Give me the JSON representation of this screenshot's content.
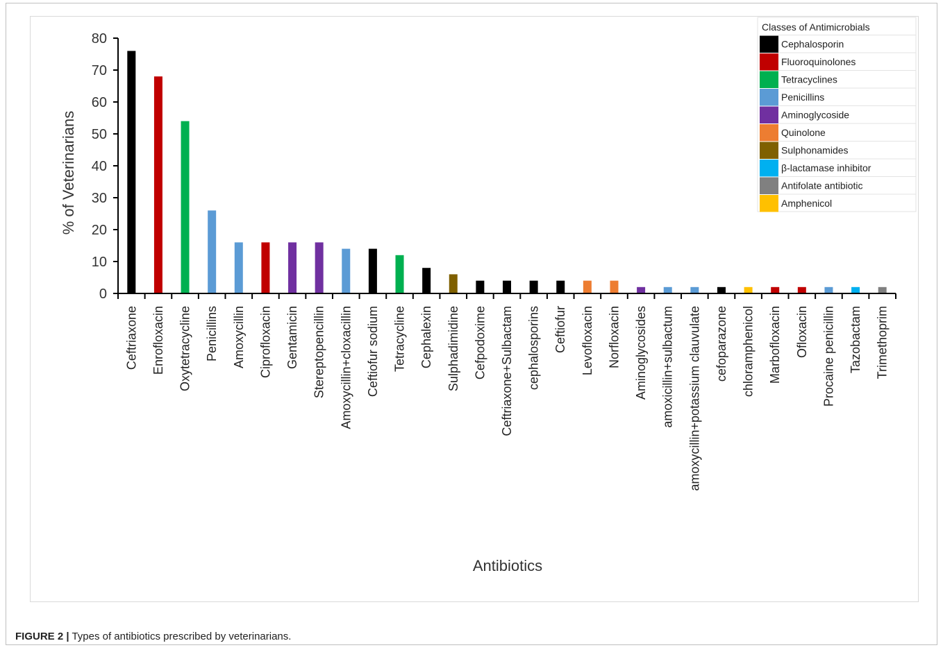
{
  "caption": {
    "label": "FIGURE 2 |",
    "text": " Types of antibiotics prescribed by veterinarians."
  },
  "chart_data": {
    "type": "bar",
    "xlabel": "Antibiotics",
    "ylabel": "% of Veterinarians",
    "ylim": [
      0,
      80
    ],
    "yticks": [
      0,
      10,
      20,
      30,
      40,
      50,
      60,
      70,
      80
    ],
    "grid": false,
    "legend_position": "top-right",
    "legend_title": "Classes of Antimicrobials",
    "classes": [
      {
        "name": "Cephalosporin",
        "color": "#000000"
      },
      {
        "name": "Fluoroquinolones",
        "color": "#c00000"
      },
      {
        "name": "Tetracyclines",
        "color": "#00b050"
      },
      {
        "name": "Penicillins",
        "color": "#5b9bd5"
      },
      {
        "name": "Aminoglycoside",
        "color": "#7030a0"
      },
      {
        "name": "Quinolone",
        "color": "#ed7d31"
      },
      {
        "name": "Sulphonamides",
        "color": "#7f6000"
      },
      {
        "name": "β-lactamase inhibitor",
        "color": "#00b0f0"
      },
      {
        "name": "Antifolate antibiotic",
        "color": "#808080"
      },
      {
        "name": "Amphenicol",
        "color": "#ffc000"
      }
    ],
    "categories": [
      "Ceftriaxone",
      "Enrofloxacin",
      "Oxytetracycline",
      "Penicillins",
      "Amoxycillin",
      "Ciprofloxacin",
      "Gentamicin",
      "Stereptopencillin",
      "Amoxycillin+cloxacillin",
      "Ceftiofur sodium",
      "Tetracycline",
      "Cephalexin",
      "Sulphadimidine",
      "Cefpodoxime",
      "Ceftriaxone+Sulbactam",
      "cephalosporins",
      "Ceftiofur",
      "Levofloxacin",
      "Norfloxacin",
      "Aminoglycosides",
      "amoxicillin+sulbactum",
      "amoxycillin+potassium clauvulate",
      "cefoparazone",
      "chloramphenicol",
      "Marbofloxacin",
      "Ofloxacin",
      "Procaine penicillin",
      "Tazobactam",
      "Trimethoprim"
    ],
    "values": [
      76,
      68,
      54,
      26,
      16,
      16,
      16,
      16,
      14,
      14,
      12,
      8,
      6,
      4,
      4,
      4,
      4,
      4,
      4,
      2,
      2,
      2,
      2,
      2,
      2,
      2,
      2,
      2,
      2
    ],
    "bar_class": [
      0,
      1,
      2,
      3,
      3,
      1,
      4,
      4,
      3,
      0,
      2,
      0,
      6,
      0,
      0,
      0,
      0,
      5,
      5,
      4,
      3,
      3,
      0,
      9,
      1,
      1,
      3,
      7,
      8
    ]
  }
}
